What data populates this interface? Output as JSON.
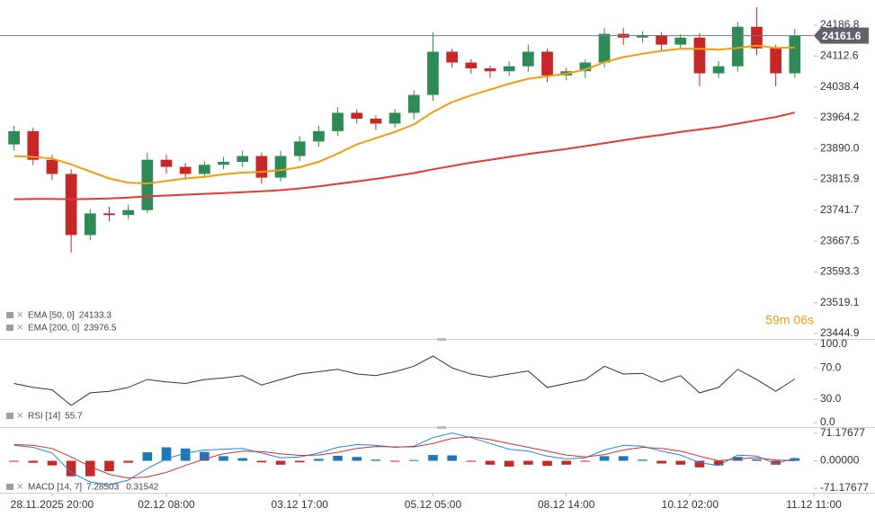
{
  "chart_data": [
    {
      "type": "candlestick",
      "countdown": "59m 06s",
      "open": [
        23900,
        23932,
        23863,
        23829,
        23682,
        23734,
        23730,
        23742,
        23863,
        23846,
        23829,
        23851,
        23858,
        23872,
        23820,
        23872,
        23907,
        23932,
        23976,
        23962,
        23950,
        23976,
        24019,
        24123,
        24097,
        24083,
        24076,
        24088,
        24123,
        24066,
        24076,
        24097,
        24166,
        24157,
        24163,
        24140,
        24157,
        24071,
        24088,
        24183,
        24131,
        24071
      ],
      "high": [
        23945,
        23940,
        23875,
        23840,
        23745,
        23750,
        23755,
        23880,
        23875,
        23855,
        23860,
        23870,
        23885,
        23880,
        23885,
        23920,
        23945,
        23990,
        23985,
        23970,
        23985,
        24030,
        24170,
        24130,
        24105,
        24090,
        24100,
        24140,
        24130,
        24085,
        24105,
        24180,
        24180,
        24172,
        24170,
        24165,
        24168,
        24100,
        24195,
        24230,
        24140,
        24178
      ],
      "low": [
        23885,
        23850,
        23815,
        23640,
        23670,
        23715,
        23720,
        23735,
        23830,
        23815,
        23820,
        23840,
        23845,
        23805,
        23810,
        23860,
        23895,
        23920,
        23950,
        23935,
        23940,
        23960,
        24005,
        24085,
        24070,
        24060,
        24065,
        24075,
        24050,
        24055,
        24060,
        24085,
        24140,
        24145,
        24125,
        24130,
        24040,
        24060,
        24075,
        24115,
        24040,
        24060
      ],
      "close": [
        23932,
        23863,
        23829,
        23682,
        23734,
        23730,
        23742,
        23863,
        23846,
        23829,
        23851,
        23858,
        23872,
        23820,
        23872,
        23907,
        23932,
        23976,
        23962,
        23950,
        23976,
        24019,
        24123,
        24097,
        24083,
        24076,
        24088,
        24123,
        24066,
        24076,
        24097,
        24166,
        24157,
        24163,
        24140,
        24157,
        24071,
        24088,
        24183,
        24131,
        24071,
        24161.6
      ],
      "up_color": "#2e8b57",
      "down_color": "#c62828",
      "series": [
        {
          "name": "EMA [50, 0]",
          "color": "#f39c12",
          "values": [
            23872,
            23870,
            23866,
            23852,
            23835,
            23818,
            23808,
            23806,
            23812,
            23818,
            23822,
            23828,
            23832,
            23834,
            23838,
            23845,
            23858,
            23878,
            23900,
            23915,
            23930,
            23948,
            23978,
            24002,
            24018,
            24032,
            24046,
            24058,
            24064,
            24070,
            24080,
            24098,
            24110,
            24118,
            24125,
            24130,
            24130,
            24128,
            24132,
            24138,
            24132,
            24133.3
          ]
        },
        {
          "name": "EMA [200, 0]",
          "color": "#e53935",
          "values": [
            23768,
            23769,
            23769,
            23768,
            23769,
            23770,
            23772,
            23775,
            23777,
            23779,
            23781,
            23783,
            23785,
            23787,
            23790,
            23794,
            23799,
            23805,
            23811,
            23817,
            23824,
            23831,
            23840,
            23848,
            23856,
            23863,
            23870,
            23877,
            23883,
            23889,
            23896,
            23903,
            23910,
            23917,
            23923,
            23930,
            23936,
            23942,
            23950,
            23958,
            23966,
            23976.5
          ]
        }
      ],
      "xlim": [
        -0.5,
        42
      ],
      "ylim": [
        23434.1,
        24247.4
      ],
      "yticks": [
        24186.8,
        24112.6,
        24038.4,
        23964.2,
        {
          "value": 23890.0,
          "label": "23890.0"
        },
        23815.9,
        23741.7,
        23667.5,
        23593.3,
        23519.1,
        23444.9
      ]
    },
    {
      "type": "line",
      "series": [
        {
          "name": "RSI [14]",
          "color": "#333333",
          "values": [
            50,
            45,
            42,
            22,
            38,
            40,
            45,
            55,
            52,
            50,
            55,
            57,
            60,
            48,
            55,
            62,
            65,
            68,
            62,
            60,
            65,
            72,
            85,
            70,
            62,
            58,
            62,
            66,
            45,
            50,
            55,
            72,
            62,
            63,
            52,
            60,
            38,
            45,
            68,
            55,
            40,
            55.7
          ]
        }
      ],
      "xlim": [
        -0.5,
        42
      ],
      "ylim": [
        -5.7,
        103.4
      ],
      "yticks": [
        {
          "value": 100,
          "label": "100.0"
        },
        {
          "value": 70,
          "label": "70.0"
        },
        {
          "value": 30,
          "label": "30.0"
        },
        {
          "value": 0,
          "label": "0.0"
        }
      ]
    },
    {
      "type": "macd",
      "series": [
        {
          "name": "MACD [14, 7]",
          "color": "#1e88e5",
          "values": [
            40,
            35,
            20,
            -30,
            -55,
            -62,
            -50,
            -20,
            5,
            20,
            28,
            30,
            32,
            20,
            8,
            10,
            20,
            35,
            42,
            40,
            35,
            38,
            60,
            72,
            60,
            45,
            30,
            25,
            12,
            5,
            8,
            28,
            40,
            38,
            25,
            15,
            -5,
            -12,
            15,
            12,
            -8,
            7.28503
          ]
        },
        {
          "color": "#d32f2f",
          "values": [
            42,
            40,
            32,
            10,
            -15,
            -35,
            -45,
            -42,
            -30,
            -12,
            5,
            18,
            25,
            24,
            18,
            14,
            15,
            22,
            32,
            37,
            36,
            36,
            45,
            58,
            62,
            55,
            45,
            35,
            25,
            15,
            10,
            16,
            28,
            35,
            32,
            25,
            12,
            0,
            5,
            8,
            2,
            0.31542
          ]
        }
      ],
      "histogram": {
        "positive_color": "#1f77b4",
        "negative_color": "#c62828",
        "values": [
          -2,
          -5,
          -12,
          -40,
          -40,
          -27,
          -5,
          22,
          35,
          32,
          23,
          12,
          7,
          -4,
          -10,
          -4,
          5,
          13,
          10,
          3,
          -1,
          2,
          15,
          14,
          -2,
          -10,
          -15,
          -10,
          -13,
          -10,
          -2,
          12,
          12,
          3,
          -7,
          -10,
          -17,
          -12,
          10,
          4,
          -10,
          6.96961
        ]
      },
      "xlim": [
        -0.5,
        42
      ],
      "ylim": [
        -82.7,
        82.7
      ],
      "yticks": [
        71.17677,
        {
          "value": 0,
          "label": "0.00000"
        },
        -71.17677
      ],
      "xticks": [
        {
          "value": 2,
          "label": "28.11.2025 20:00"
        },
        {
          "value": 8,
          "label": "02.12 08:00"
        },
        {
          "value": 15,
          "label": "03.12 17:00"
        },
        {
          "value": 22,
          "label": "05.12 05:00"
        },
        {
          "value": 29,
          "label": "08.12 14:00"
        },
        {
          "value": 35.5,
          "label": "10.12 02:00"
        },
        {
          "value": 42,
          "label": "11.12 11:00"
        }
      ]
    }
  ]
}
